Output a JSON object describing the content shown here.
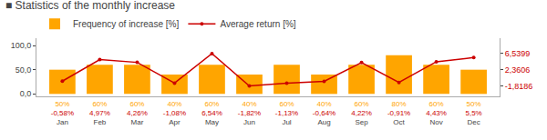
{
  "chart_data": {
    "type": "bar",
    "title": "■ Statistics of the monthly increase",
    "categories": [
      "Jan",
      "Feb",
      "Mar",
      "Apr",
      "May",
      "Jun",
      "Jul",
      "Aug",
      "Sep",
      "Oct",
      "Nov",
      "Dec"
    ],
    "series": [
      {
        "name": "Frequency of increase [%]",
        "type": "bar",
        "color": "#FFA500",
        "values": [
          50,
          60,
          60,
          40,
          60,
          40,
          60,
          40,
          60,
          80,
          60,
          50
        ],
        "value_labels": [
          "50%",
          "60%",
          "60%",
          "40%",
          "60%",
          "40%",
          "60%",
          "40%",
          "60%",
          "80%",
          "60%",
          "50%"
        ]
      },
      {
        "name": "Average return [%]",
        "type": "line",
        "axis": "y2",
        "color": "#CC0000",
        "marker": "circle",
        "values": [
          -0.58,
          4.97,
          4.26,
          -1.08,
          6.54,
          -1.82,
          -1.13,
          -0.64,
          4.22,
          -0.91,
          4.43,
          5.5
        ],
        "value_labels": [
          "-0,58%",
          "4,97%",
          "4,26%",
          "-1,08%",
          "6,54%",
          "-1,82%",
          "-1,13%",
          "-0,64%",
          "4,22%",
          "-0,91%",
          "4,43%",
          "5,5%"
        ]
      }
    ],
    "ylim": [
      -5,
      115
    ],
    "yticks": [
      {
        "value": 0.0,
        "label": "0,0"
      },
      {
        "value": 50.0,
        "label": "50,0"
      },
      {
        "value": 100.0,
        "label": "100,0"
      }
    ],
    "y2lim": [
      -4.5,
      10.5
    ],
    "y2ticks": [
      {
        "value": -1.8186,
        "label": "-1,8186"
      },
      {
        "value": 2.3606,
        "label": "2,3606"
      },
      {
        "value": 6.5399,
        "label": "6,5399"
      }
    ],
    "grid": false,
    "legend": "top",
    "data_labels": true
  }
}
